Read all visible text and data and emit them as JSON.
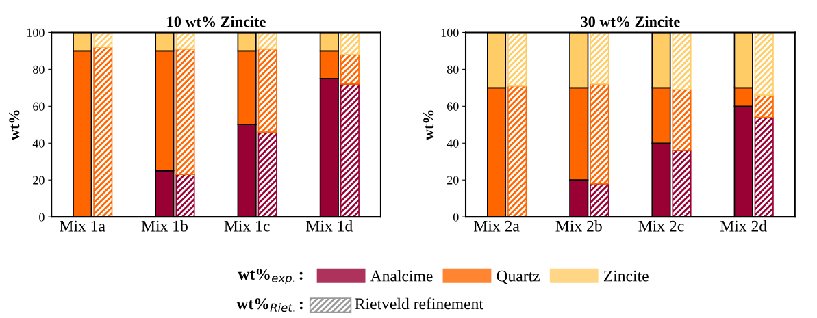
{
  "chart_data": [
    {
      "type": "bar",
      "title": "10 wt% Zincite",
      "ylabel": "wt%",
      "categories": [
        "Mix 1a",
        null,
        "Mix 1b",
        null,
        "Mix 1c",
        null,
        "Mix 1d",
        null
      ],
      "stacked": true,
      "ylim": [
        0,
        100
      ],
      "yticks": [
        0,
        20,
        40,
        60,
        80,
        100
      ],
      "grid": false,
      "legend": "bottom",
      "annotations": [
        "wt%$_{exp.}$:",
        "wt%$_{Riet.}$:",
        "Rietveld refinement"
      ],
      "series": [
        {
          "name": "Analcime",
          "color": "#990033",
          "values": [
            0,
            null,
            25,
            null,
            50,
            null,
            75,
            null
          ]
        },
        {
          "name": "Quartz",
          "color": "#ff6600",
          "values": [
            90,
            null,
            65,
            null,
            40,
            null,
            15,
            null
          ]
        },
        {
          "name": "Zincite",
          "color": "#ffcc66",
          "values": [
            10,
            null,
            10,
            null,
            10,
            null,
            10,
            null
          ]
        },
        {
          "color": "#990033",
          "values": [
            null,
            0,
            null,
            23,
            null,
            46,
            null,
            72
          ]
        },
        {
          "color": "#ff6600",
          "values": [
            null,
            92,
            null,
            68,
            null,
            45,
            null,
            16
          ]
        },
        {
          "color": "#ffcc66",
          "values": [
            null,
            8,
            null,
            9,
            null,
            9,
            null,
            12
          ]
        }
      ]
    },
    {
      "type": "bar",
      "title": "30 wt% Zincite",
      "ylabel": "wt%",
      "categories": [
        "Mix 2a",
        null,
        "Mix 2b",
        null,
        "Mix 2c",
        null,
        "Mix 2d",
        null
      ],
      "stacked": true,
      "ylim": [
        0,
        100
      ],
      "yticks": [
        0,
        20,
        40,
        60,
        80,
        100
      ],
      "grid": false,
      "series": [
        {
          "color": "#990033",
          "values": [
            0,
            null,
            20,
            null,
            40,
            null,
            60,
            null
          ]
        },
        {
          "color": "#ff6600",
          "values": [
            70,
            null,
            50,
            null,
            30,
            null,
            10,
            null
          ]
        },
        {
          "color": "#ffcc66",
          "values": [
            30,
            null,
            30,
            null,
            30,
            null,
            30,
            null
          ]
        },
        {
          "color": "#990033",
          "values": [
            null,
            0,
            null,
            18,
            null,
            36,
            null,
            54
          ]
        },
        {
          "color": "#ff6600",
          "values": [
            null,
            71,
            null,
            54,
            null,
            33,
            null,
            12
          ]
        },
        {
          "color": "#ffcc66",
          "values": [
            null,
            29,
            null,
            28,
            null,
            31,
            null,
            34
          ]
        }
      ]
    }
  ]
}
